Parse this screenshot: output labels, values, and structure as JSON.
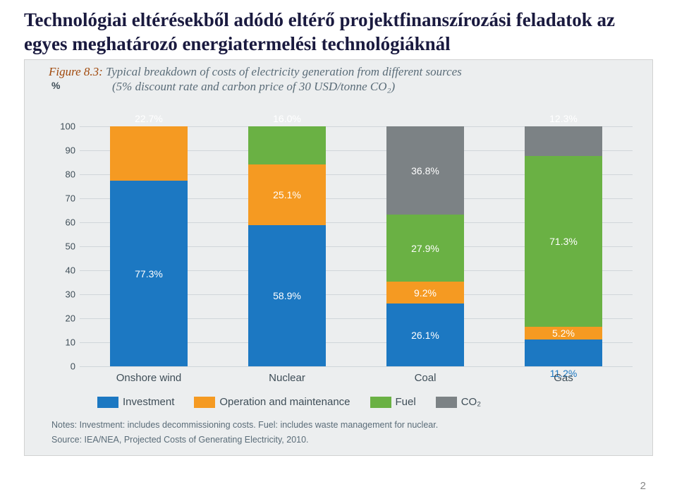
{
  "heading": "Technológiai eltérésekből adódó eltérő projektfinanszírozási feladatok az egyes meghatározó energiatermelési technológiáknál",
  "caption_prefix": "Figure 8.3:",
  "caption_main": "Typical breakdown of costs of electricity generation from different sources",
  "caption_sub": "(5% discount rate and carbon price of 30 USD/tonne CO₂)",
  "chart": {
    "type": "stacked-bar",
    "yaxis_label": "%",
    "ymax": 100,
    "ytick_step": 10,
    "yticks": [
      0,
      10,
      20,
      30,
      40,
      50,
      60,
      70,
      80,
      90,
      100
    ],
    "bar_total_height_pct": 100,
    "background_color": "#eceeef",
    "grid_color": "#d0d6da",
    "label_color": "#3e4d57",
    "categories": [
      "Onshore wind",
      "Nuclear",
      "Coal",
      "Gas"
    ],
    "series_order": [
      "investment",
      "om",
      "fuel",
      "co2"
    ],
    "series": {
      "investment": {
        "label": "Investment",
        "color": "#1c78c2"
      },
      "om": {
        "label": "Operation and maintenance",
        "color": "#f59a22"
      },
      "fuel": {
        "label": "Fuel",
        "color": "#6ab144"
      },
      "co2": {
        "label": "CO₂",
        "color": "#7c8285"
      }
    },
    "data": [
      {
        "investment": 77.3,
        "om": 22.7,
        "fuel": 0,
        "co2": 0,
        "labels": {
          "investment": "77.3%",
          "om": "22.7%"
        },
        "label_positions": {
          "om": "above"
        }
      },
      {
        "investment": 58.9,
        "om": 25.1,
        "fuel": 16.0,
        "co2": 0,
        "labels": {
          "investment": "58.9%",
          "om": "25.1%",
          "fuel": "16.0%"
        },
        "label_positions": {
          "fuel": "above"
        }
      },
      {
        "investment": 26.1,
        "om": 9.2,
        "fuel": 27.9,
        "co2": 36.8,
        "labels": {
          "investment": "26.1%",
          "om": "9.2%",
          "fuel": "27.9%",
          "co2": "36.8%"
        }
      },
      {
        "investment": 11.2,
        "om": 5.2,
        "fuel": 71.3,
        "co2": 12.3,
        "labels": {
          "investment": "11.2%",
          "om": "5.2%",
          "fuel": "71.3%",
          "co2": "12.3%"
        },
        "label_positions": {
          "investment": "below",
          "co2": "above"
        }
      }
    ]
  },
  "notes_line1": "Notes: Investment: includes decommissioning costs. Fuel: includes waste management for nuclear.",
  "notes_line2": "Source: IEA/NEA, Projected Costs of Generating Electricity, 2010.",
  "page_number": "2"
}
